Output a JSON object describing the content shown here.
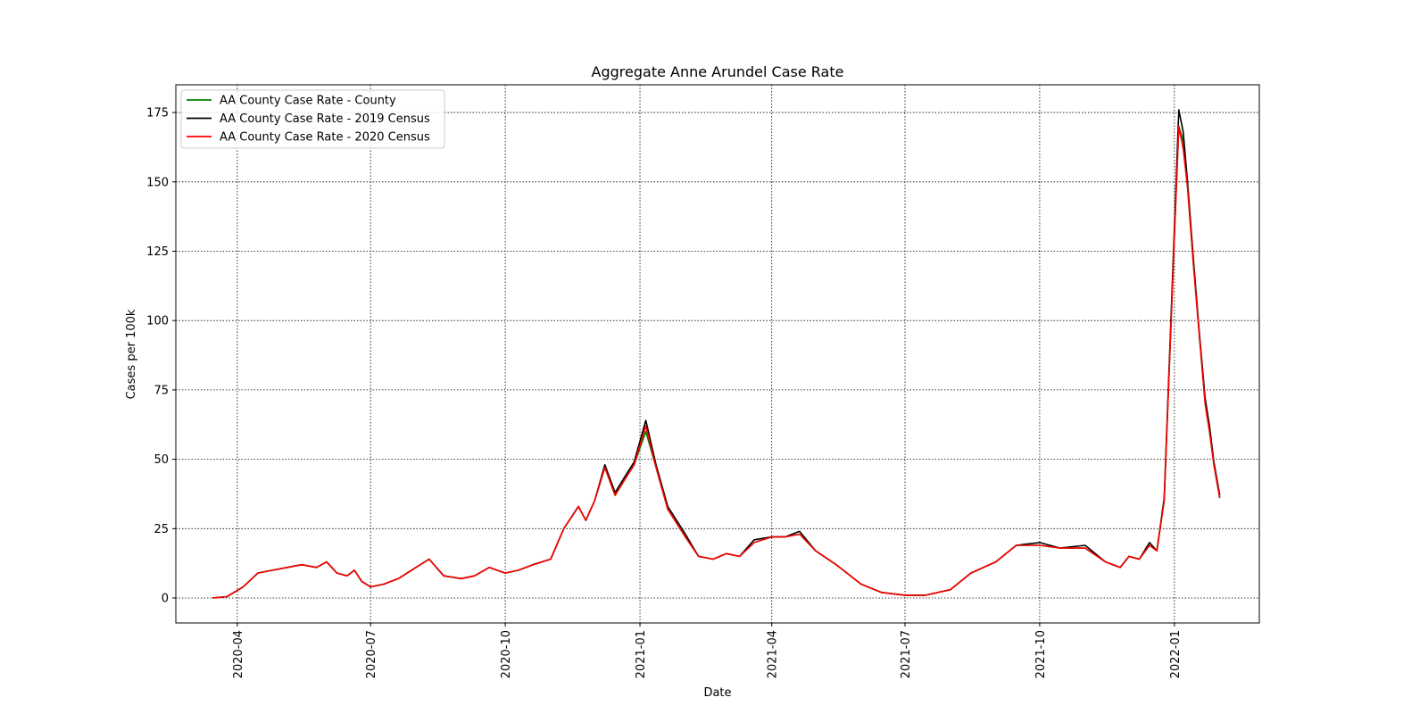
{
  "chart_data": {
    "type": "line",
    "title": "Aggregate Anne Arundel Case Rate",
    "xlabel": "Date",
    "ylabel": "Cases per 100k",
    "x_ticks": [
      "2020-04",
      "2020-07",
      "2020-10",
      "2021-01",
      "2021-04",
      "2021-07",
      "2021-10",
      "2022-01"
    ],
    "y_ticks": [
      0,
      25,
      50,
      75,
      100,
      125,
      150,
      175
    ],
    "xlim": [
      "2020-02-19",
      "2022-02-28"
    ],
    "ylim": [
      -9,
      185
    ],
    "grid": true,
    "legend_position": "top-left",
    "x": [
      "2020-03-15",
      "2020-03-25",
      "2020-04-05",
      "2020-04-15",
      "2020-04-25",
      "2020-05-05",
      "2020-05-15",
      "2020-05-25",
      "2020-06-01",
      "2020-06-08",
      "2020-06-15",
      "2020-06-20",
      "2020-06-25",
      "2020-07-01",
      "2020-07-10",
      "2020-07-20",
      "2020-08-01",
      "2020-08-10",
      "2020-08-20",
      "2020-09-01",
      "2020-09-10",
      "2020-09-20",
      "2020-10-01",
      "2020-10-10",
      "2020-10-20",
      "2020-11-01",
      "2020-11-10",
      "2020-11-20",
      "2020-11-25",
      "2020-12-01",
      "2020-12-08",
      "2020-12-15",
      "2020-12-22",
      "2020-12-28",
      "2021-01-05",
      "2021-01-12",
      "2021-01-20",
      "2021-02-01",
      "2021-02-10",
      "2021-02-20",
      "2021-03-01",
      "2021-03-10",
      "2021-03-20",
      "2021-04-01",
      "2021-04-10",
      "2021-04-20",
      "2021-05-01",
      "2021-05-15",
      "2021-06-01",
      "2021-06-15",
      "2021-07-01",
      "2021-07-15",
      "2021-08-01",
      "2021-08-15",
      "2021-09-01",
      "2021-09-15",
      "2021-10-01",
      "2021-10-15",
      "2021-11-01",
      "2021-11-15",
      "2021-11-25",
      "2021-12-01",
      "2021-12-08",
      "2021-12-15",
      "2021-12-20",
      "2021-12-25",
      "2022-01-01",
      "2022-01-04",
      "2022-01-07",
      "2022-01-10",
      "2022-01-14",
      "2022-01-18",
      "2022-01-22",
      "2022-01-25",
      "2022-01-28",
      "2022-02-01"
    ],
    "series": [
      {
        "name": "AA County Case Rate - County",
        "color": "#008000",
        "values": [
          0,
          0.5,
          4,
          9,
          10,
          11,
          12,
          11,
          13,
          9,
          8,
          10,
          6,
          4,
          5,
          7,
          11,
          14,
          8,
          7,
          8,
          11,
          9,
          10,
          12,
          14,
          25,
          33,
          28,
          35,
          47,
          37,
          43,
          48,
          60,
          47,
          32,
          22,
          15,
          14,
          16,
          15,
          20,
          22,
          22,
          23,
          17,
          12,
          5,
          2,
          1,
          1,
          3,
          9,
          13,
          19,
          19,
          18,
          18,
          13,
          11,
          15,
          14,
          19,
          17,
          35,
          130,
          170,
          165,
          148,
          120,
          95,
          70,
          60,
          48,
          36
        ]
      },
      {
        "name": "AA County Case Rate - 2019 Census",
        "color": "#000000",
        "values": [
          0,
          0.5,
          4,
          9,
          10,
          11,
          12,
          11,
          13,
          9,
          8,
          10,
          6,
          4,
          5,
          7,
          11,
          14,
          8,
          7,
          8,
          11,
          9,
          10,
          12,
          14,
          25,
          33,
          28,
          35,
          48,
          38,
          44,
          49,
          64,
          48,
          33,
          23,
          15,
          14,
          16,
          15,
          21,
          22,
          22,
          24,
          17,
          12,
          5,
          2,
          1,
          1,
          3,
          9,
          13,
          19,
          20,
          18,
          19,
          13,
          11,
          15,
          14,
          20,
          17,
          36,
          133,
          176,
          168,
          150,
          122,
          96,
          72,
          62,
          49,
          37
        ]
      },
      {
        "name": "AA County Case Rate - 2020 Census",
        "color": "#ff0000",
        "values": [
          0,
          0.5,
          4,
          9,
          10,
          11,
          12,
          11,
          13,
          9,
          8,
          10,
          6,
          4,
          5,
          7,
          11,
          14,
          8,
          7,
          8,
          11,
          9,
          10,
          12,
          14,
          25,
          33,
          28,
          35,
          47,
          37,
          43,
          48,
          62,
          47,
          32,
          22,
          15,
          14,
          16,
          15,
          20,
          22,
          22,
          23,
          17,
          12,
          5,
          2,
          1,
          1,
          3,
          9,
          13,
          19,
          19,
          18,
          18,
          13,
          11,
          15,
          14,
          19,
          17,
          35,
          130,
          170,
          162,
          148,
          120,
          95,
          70,
          60,
          48,
          36
        ]
      }
    ]
  }
}
